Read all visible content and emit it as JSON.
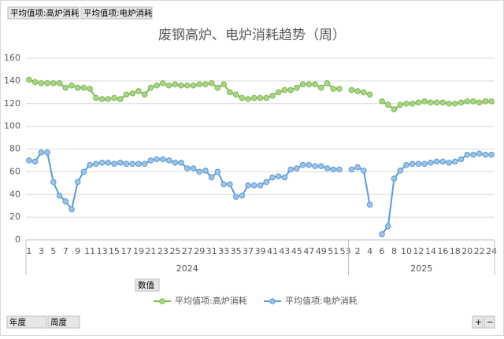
{
  "chart_data": {
    "type": "line",
    "title": "废钢高炉、电炉消耗趋势（周）",
    "field_buttons": [
      "平均值项:高炉消耗",
      "平均值项:电炉消耗"
    ],
    "value_button": "数值",
    "axis_buttons": [
      "年度",
      "周度"
    ],
    "zoom_buttons": [
      "+",
      "−"
    ],
    "groups": [
      {
        "label": "2024",
        "categories": [
          "1",
          null,
          "3",
          null,
          "5",
          null,
          "7",
          null,
          "9",
          null,
          "11",
          null,
          "13",
          null,
          "15",
          null,
          "17",
          null,
          "19",
          null,
          "21",
          null,
          "23",
          null,
          "25",
          null,
          "27",
          null,
          "29",
          null,
          "31",
          null,
          "33",
          null,
          "35",
          null,
          "37",
          null,
          "39",
          null,
          "41",
          null,
          "43",
          null,
          "45",
          null,
          "47",
          null,
          "49",
          null,
          "51",
          null,
          "53"
        ]
      },
      {
        "label": "2025",
        "categories": [
          null,
          "2",
          null,
          "4",
          null,
          "6",
          null,
          "8",
          null,
          "10",
          null,
          "12",
          null,
          "14",
          null,
          "16",
          null,
          "18",
          null,
          "20",
          null,
          "22",
          null,
          "24"
        ]
      }
    ],
    "series": [
      {
        "name": "平均值项:高炉消耗",
        "color": "#7cba4e",
        "marker_fill": "#a9d48a",
        "values": [
          141,
          139,
          138,
          138,
          138,
          138,
          134,
          136,
          134,
          134,
          133,
          125,
          124,
          124,
          125,
          124,
          128,
          129,
          131,
          128,
          134,
          136,
          138,
          136,
          137,
          136,
          136,
          136,
          137,
          137,
          138,
          134,
          137,
          130,
          128,
          125,
          124,
          125,
          125,
          125,
          127,
          130,
          132,
          132,
          134,
          137,
          137,
          137,
          134,
          138,
          133,
          133,
          null,
          132,
          131,
          130,
          128,
          null,
          122,
          119,
          115,
          119,
          120,
          120,
          121,
          122,
          121,
          121,
          121,
          120,
          120,
          121,
          122,
          122,
          121,
          122,
          122
        ]
      },
      {
        "name": "平均值项:电炉消耗",
        "color": "#5b9bd5",
        "marker_fill": "#9dc3e6",
        "values": [
          70,
          69,
          77,
          77,
          51,
          39,
          34,
          27,
          51,
          60,
          66,
          67,
          68,
          68,
          67,
          68,
          67,
          67,
          67,
          67,
          70,
          71,
          71,
          70,
          68,
          68,
          63,
          63,
          60,
          61,
          55,
          60,
          49,
          49,
          38,
          39,
          48,
          48,
          48,
          51,
          55,
          56,
          55,
          62,
          63,
          66,
          66,
          65,
          65,
          63,
          62,
          62,
          null,
          62,
          64,
          61,
          31,
          null,
          5,
          12,
          54,
          61,
          66,
          67,
          67,
          67,
          68,
          69,
          69,
          68,
          69,
          71,
          75,
          75,
          76,
          75,
          75
        ]
      }
    ],
    "ylim": [
      0,
      160
    ],
    "yticks": [
      0,
      20,
      40,
      60,
      80,
      100,
      120,
      140,
      160
    ],
    "grid": true,
    "legend": "bottom"
  }
}
